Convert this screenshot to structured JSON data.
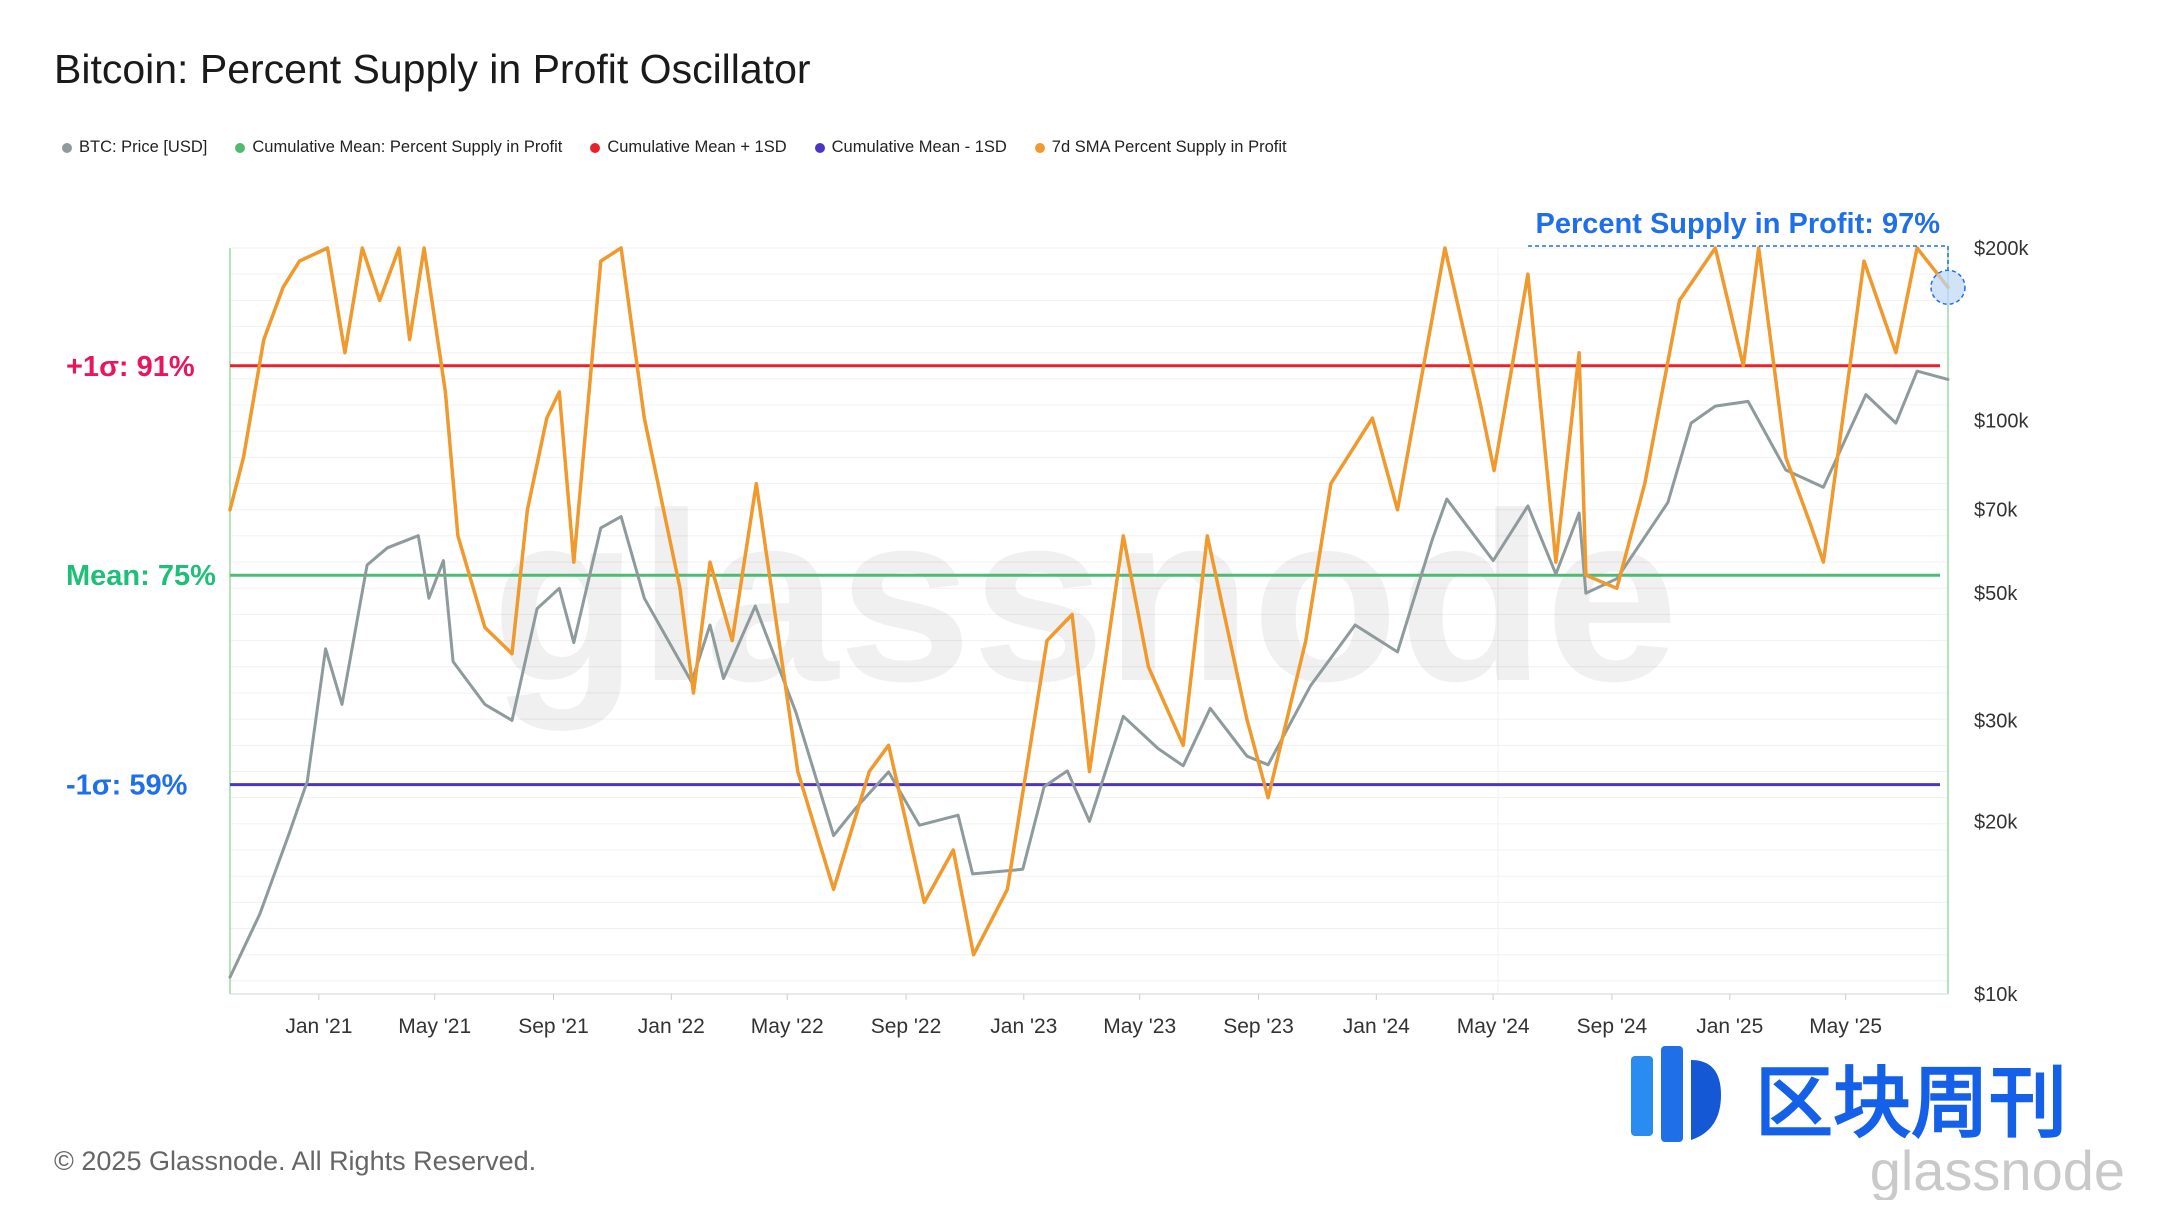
{
  "title": "Bitcoin: Percent Supply in Profit Oscillator",
  "legend": [
    {
      "label": "BTC: Price [USD]",
      "color": "#8e9a9b"
    },
    {
      "label": "Cumulative Mean: Percent Supply in Profit",
      "color": "#4dbb73"
    },
    {
      "label": "Cumulative Mean + 1SD",
      "color": "#e8222b"
    },
    {
      "label": "Cumulative Mean - 1SD",
      "color": "#4d35c4"
    },
    {
      "label": "7d SMA Percent Supply in Profit",
      "color": "#f0992d"
    }
  ],
  "footer": "© 2025 Glassnode. All Rights Reserved.",
  "watermark": "glassnode",
  "brand": {
    "cn": "区块周刊",
    "en": "glassnode"
  },
  "chart_data": {
    "type": "line",
    "title": "Bitcoin: Percent Supply in Profit Oscillator",
    "x_ticks": [
      "Jan '21",
      "May '21",
      "Sep '21",
      "Jan '22",
      "May '22",
      "Sep '22",
      "Jan '23",
      "May '23",
      "Sep '23",
      "Jan '24",
      "May '24",
      "Sep '24",
      "Jan '25",
      "May '25"
    ],
    "y_right_ticks": [
      "$200k",
      "$100k",
      "$70k",
      "$50k",
      "$30k",
      "$20k",
      "$10k"
    ],
    "y_right_scale": "log",
    "y_right_range": [
      10000,
      200000
    ],
    "y_left_range_pct": [
      43,
      100
    ],
    "reference_lines": [
      {
        "label": "+1σ: 91%",
        "value": 91,
        "color": "#e8222b",
        "label_color": "#e8175d"
      },
      {
        "label": "Mean: 75%",
        "value": 75,
        "color": "#4dbb73",
        "label_color": "#1fbf7a"
      },
      {
        "label": "-1σ: 59%",
        "value": 59,
        "color": "#4d35c4",
        "label_color": "#1f6fe8"
      }
    ],
    "annotation": {
      "label": "Percent Supply in Profit: 97%",
      "value": 97,
      "color": "#1f6fe8"
    },
    "x_range": [
      "2020-10-01",
      "2025-08-15"
    ],
    "series": [
      {
        "name": "BTC: Price [USD]",
        "color": "#8e9a9b",
        "axis": "right",
        "points": [
          [
            "2020-10-01",
            10700
          ],
          [
            "2020-11-01",
            13800
          ],
          [
            "2020-12-01",
            19000
          ],
          [
            "2020-12-20",
            23500
          ],
          [
            "2021-01-08",
            40000
          ],
          [
            "2021-01-25",
            32000
          ],
          [
            "2021-02-20",
            56000
          ],
          [
            "2021-03-13",
            60000
          ],
          [
            "2021-04-14",
            63000
          ],
          [
            "2021-04-25",
            49000
          ],
          [
            "2021-05-10",
            57000
          ],
          [
            "2021-05-20",
            38000
          ],
          [
            "2021-06-22",
            32000
          ],
          [
            "2021-07-20",
            30000
          ],
          [
            "2021-08-15",
            47000
          ],
          [
            "2021-09-07",
            51000
          ],
          [
            "2021-09-22",
            41000
          ],
          [
            "2021-10-20",
            65000
          ],
          [
            "2021-11-10",
            68000
          ],
          [
            "2021-12-04",
            49000
          ],
          [
            "2022-01-22",
            35000
          ],
          [
            "2022-02-10",
            44000
          ],
          [
            "2022-02-24",
            35500
          ],
          [
            "2022-03-29",
            47500
          ],
          [
            "2022-05-10",
            31000
          ],
          [
            "2022-06-18",
            18900
          ],
          [
            "2022-07-10",
            21000
          ],
          [
            "2022-08-14",
            24400
          ],
          [
            "2022-09-15",
            19700
          ],
          [
            "2022-10-25",
            20500
          ],
          [
            "2022-11-09",
            16200
          ],
          [
            "2022-12-31",
            16500
          ],
          [
            "2023-01-22",
            23000
          ],
          [
            "2023-02-15",
            24500
          ],
          [
            "2023-03-10",
            20000
          ],
          [
            "2023-04-14",
            30500
          ],
          [
            "2023-05-20",
            26800
          ],
          [
            "2023-06-15",
            25000
          ],
          [
            "2023-07-13",
            31500
          ],
          [
            "2023-08-20",
            26000
          ],
          [
            "2023-09-11",
            25100
          ],
          [
            "2023-10-25",
            34500
          ],
          [
            "2023-12-10",
            44000
          ],
          [
            "2024-01-23",
            39500
          ],
          [
            "2024-02-28",
            62000
          ],
          [
            "2024-03-14",
            73000
          ],
          [
            "2024-05-01",
            57000
          ],
          [
            "2024-06-06",
            71000
          ],
          [
            "2024-07-05",
            54000
          ],
          [
            "2024-07-29",
            69000
          ],
          [
            "2024-08-05",
            50000
          ],
          [
            "2024-09-06",
            53000
          ],
          [
            "2024-10-29",
            72000
          ],
          [
            "2024-11-22",
            99000
          ],
          [
            "2024-12-17",
            106000
          ],
          [
            "2025-01-20",
            108000
          ],
          [
            "2025-02-28",
            82000
          ],
          [
            "2025-04-08",
            76500
          ],
          [
            "2025-05-22",
            111000
          ],
          [
            "2025-06-22",
            99000
          ],
          [
            "2025-07-14",
            122000
          ],
          [
            "2025-08-15",
            118000
          ]
        ]
      },
      {
        "name": "7d SMA Percent Supply in Profit",
        "color": "#f0992d",
        "axis": "left",
        "points": [
          [
            "2020-10-01",
            80
          ],
          [
            "2020-10-15",
            84
          ],
          [
            "2020-11-05",
            93
          ],
          [
            "2020-11-25",
            97
          ],
          [
            "2020-12-12",
            99
          ],
          [
            "2021-01-10",
            100
          ],
          [
            "2021-01-28",
            92
          ],
          [
            "2021-02-15",
            100
          ],
          [
            "2021-03-05",
            96
          ],
          [
            "2021-03-25",
            100
          ],
          [
            "2021-04-05",
            93
          ],
          [
            "2021-04-20",
            100
          ],
          [
            "2021-05-12",
            89
          ],
          [
            "2021-05-25",
            78
          ],
          [
            "2021-06-22",
            71
          ],
          [
            "2021-07-20",
            69
          ],
          [
            "2021-08-05",
            80
          ],
          [
            "2021-08-25",
            87
          ],
          [
            "2021-09-07",
            89
          ],
          [
            "2021-09-22",
            76
          ],
          [
            "2021-10-20",
            99
          ],
          [
            "2021-11-10",
            100
          ],
          [
            "2021-12-04",
            87
          ],
          [
            "2022-01-10",
            74
          ],
          [
            "2022-01-24",
            66
          ],
          [
            "2022-02-10",
            76
          ],
          [
            "2022-03-05",
            70
          ],
          [
            "2022-03-30",
            82
          ],
          [
            "2022-05-12",
            60
          ],
          [
            "2022-06-18",
            51
          ],
          [
            "2022-07-25",
            60
          ],
          [
            "2022-08-14",
            62
          ],
          [
            "2022-09-20",
            50
          ],
          [
            "2022-10-20",
            54
          ],
          [
            "2022-11-10",
            46
          ],
          [
            "2022-12-15",
            51
          ],
          [
            "2023-01-25",
            70
          ],
          [
            "2023-02-20",
            72
          ],
          [
            "2023-03-10",
            60
          ],
          [
            "2023-04-14",
            78
          ],
          [
            "2023-05-10",
            68
          ],
          [
            "2023-06-15",
            62
          ],
          [
            "2023-07-10",
            78
          ],
          [
            "2023-08-20",
            64
          ],
          [
            "2023-09-11",
            58
          ],
          [
            "2023-10-20",
            70
          ],
          [
            "2023-11-15",
            82
          ],
          [
            "2023-12-28",
            87
          ],
          [
            "2024-01-23",
            80
          ],
          [
            "2024-03-12",
            100
          ],
          [
            "2024-04-18",
            88
          ],
          [
            "2024-05-02",
            83
          ],
          [
            "2024-06-06",
            98
          ],
          [
            "2024-07-05",
            76
          ],
          [
            "2024-07-29",
            92
          ],
          [
            "2024-08-05",
            75
          ],
          [
            "2024-09-06",
            74
          ],
          [
            "2024-10-05",
            82
          ],
          [
            "2024-11-10",
            96
          ],
          [
            "2024-12-17",
            100
          ],
          [
            "2025-01-15",
            91
          ],
          [
            "2025-01-31",
            100
          ],
          [
            "2025-02-28",
            84
          ],
          [
            "2025-03-25",
            79
          ],
          [
            "2025-04-08",
            76
          ],
          [
            "2025-05-20",
            99
          ],
          [
            "2025-06-22",
            92
          ],
          [
            "2025-07-14",
            100
          ],
          [
            "2025-08-15",
            97
          ]
        ]
      }
    ]
  }
}
